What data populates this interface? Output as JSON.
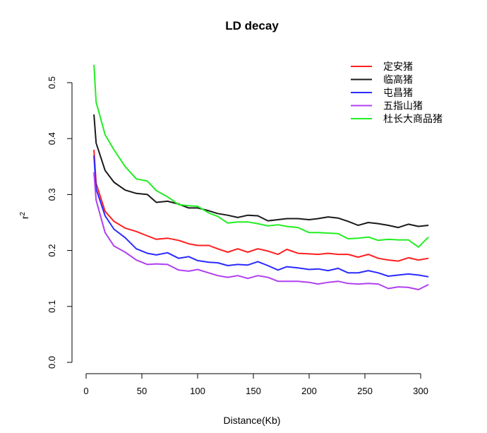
{
  "chart_data": {
    "type": "line",
    "title": "LD decay",
    "xlabel": "Distance(Kb)",
    "ylabel": "r",
    "ylabel_sup": "2",
    "xlim": [
      0,
      310
    ],
    "ylim": [
      0,
      0.55
    ],
    "xticks": [
      {
        "value": 0,
        "label": "0"
      },
      {
        "value": 50,
        "label": "50"
      },
      {
        "value": 100,
        "label": "100"
      },
      {
        "value": 150,
        "label": "150"
      },
      {
        "value": 200,
        "label": "200"
      },
      {
        "value": 250,
        "label": "250"
      },
      {
        "value": 300,
        "label": "300"
      }
    ],
    "yticks": [
      {
        "value": 0.0,
        "label": "0.0"
      },
      {
        "value": 0.1,
        "label": "0.1"
      },
      {
        "value": 0.2,
        "label": "0.2"
      },
      {
        "value": 0.3,
        "label": "0.3"
      },
      {
        "value": 0.4,
        "label": "0.4"
      },
      {
        "value": 0.5,
        "label": "0.5"
      }
    ],
    "grid": false,
    "legend_position": "top-right",
    "x": [
      7,
      9,
      17,
      25,
      35,
      45,
      55,
      63,
      73,
      83,
      92,
      100,
      110,
      118,
      127,
      136,
      145,
      154,
      163,
      172,
      180,
      190,
      200,
      208,
      217,
      226,
      235,
      244,
      253,
      262,
      271,
      280,
      289,
      298,
      307
    ],
    "series": [
      {
        "name": "定安猪",
        "color": "#ff2020",
        "values": [
          0.38,
          0.32,
          0.27,
          0.252,
          0.24,
          0.234,
          0.226,
          0.22,
          0.222,
          0.218,
          0.212,
          0.209,
          0.209,
          0.203,
          0.197,
          0.203,
          0.197,
          0.203,
          0.199,
          0.193,
          0.202,
          0.195,
          0.194,
          0.193,
          0.195,
          0.193,
          0.193,
          0.188,
          0.193,
          0.186,
          0.183,
          0.181,
          0.187,
          0.183,
          0.186
        ]
      },
      {
        "name": "临高猪",
        "color": "#1a1a1a",
        "values": [
          0.443,
          0.392,
          0.343,
          0.322,
          0.308,
          0.302,
          0.3,
          0.286,
          0.288,
          0.283,
          0.276,
          0.276,
          0.271,
          0.266,
          0.263,
          0.259,
          0.263,
          0.262,
          0.253,
          0.255,
          0.257,
          0.257,
          0.255,
          0.257,
          0.26,
          0.258,
          0.252,
          0.245,
          0.25,
          0.248,
          0.245,
          0.241,
          0.247,
          0.243,
          0.245
        ]
      },
      {
        "name": "屯昌猪",
        "color": "#2b2bff",
        "values": [
          0.37,
          0.31,
          0.262,
          0.238,
          0.223,
          0.203,
          0.195,
          0.192,
          0.196,
          0.186,
          0.189,
          0.182,
          0.179,
          0.178,
          0.173,
          0.175,
          0.174,
          0.18,
          0.173,
          0.165,
          0.171,
          0.169,
          0.166,
          0.167,
          0.164,
          0.168,
          0.16,
          0.16,
          0.164,
          0.16,
          0.154,
          0.156,
          0.158,
          0.156,
          0.153
        ]
      },
      {
        "name": "五指山猪",
        "color": "#b040f0",
        "values": [
          0.34,
          0.29,
          0.232,
          0.208,
          0.197,
          0.183,
          0.175,
          0.176,
          0.175,
          0.165,
          0.163,
          0.166,
          0.16,
          0.155,
          0.152,
          0.155,
          0.15,
          0.155,
          0.152,
          0.145,
          0.145,
          0.145,
          0.143,
          0.14,
          0.143,
          0.145,
          0.141,
          0.14,
          0.141,
          0.14,
          0.132,
          0.135,
          0.134,
          0.13,
          0.139
        ]
      },
      {
        "name": "杜长大商品猪",
        "color": "#22ee22",
        "values": [
          0.532,
          0.465,
          0.407,
          0.38,
          0.35,
          0.328,
          0.324,
          0.307,
          0.296,
          0.282,
          0.28,
          0.279,
          0.267,
          0.261,
          0.249,
          0.251,
          0.251,
          0.248,
          0.244,
          0.246,
          0.243,
          0.241,
          0.232,
          0.232,
          0.231,
          0.23,
          0.221,
          0.222,
          0.224,
          0.218,
          0.22,
          0.219,
          0.219,
          0.206,
          0.224
        ]
      }
    ]
  }
}
